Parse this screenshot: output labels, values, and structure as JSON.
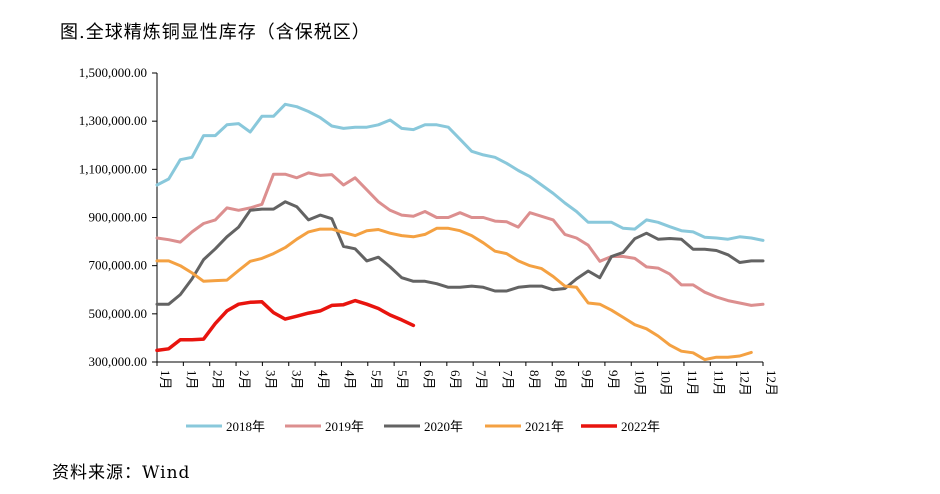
{
  "title": "图.全球精炼铜显性库存（含保税区）",
  "source": "资料来源：Wind",
  "chart_data": {
    "type": "line",
    "title": "图.全球精炼铜显性库存（含保税区）",
    "xlabel": "",
    "ylabel": "",
    "ylim": [
      300000,
      1500000
    ],
    "yticks": [
      300000,
      500000,
      700000,
      900000,
      1100000,
      1300000,
      1500000
    ],
    "ytick_labels": [
      "300,000.00",
      "500,000.00",
      "700,000.00",
      "900,000.00",
      "1,100,000.00",
      "1,300,000.00",
      "1,500,000.00"
    ],
    "x_points": 53,
    "x_tick_labels": [
      "1月",
      "1月",
      "2月",
      "2月",
      "3月",
      "3月",
      "4月",
      "4月",
      "5月",
      "5月",
      "6月",
      "6月",
      "7月",
      "7月",
      "8月",
      "8月",
      "9月",
      "9月",
      "10月",
      "10月",
      "11月",
      "11月",
      "12月",
      "12月"
    ],
    "grid": false,
    "legend": "bottom",
    "series": [
      {
        "name": "2018年",
        "color": "#89c8db",
        "width": 3,
        "values": [
          1035000,
          1060000,
          1140000,
          1150000,
          1240000,
          1240000,
          1285000,
          1290000,
          1255000,
          1320000,
          1320000,
          1370000,
          1360000,
          1340000,
          1315000,
          1280000,
          1270000,
          1275000,
          1275000,
          1285000,
          1305000,
          1270000,
          1265000,
          1285000,
          1285000,
          1275000,
          1225000,
          1175000,
          1160000,
          1150000,
          1125000,
          1095000,
          1070000,
          1035000,
          1000000,
          960000,
          925000,
          880000,
          880000,
          880000,
          855000,
          852000,
          890000,
          880000,
          862000,
          845000,
          840000,
          818000,
          815000,
          810000,
          820000,
          815000,
          805000
        ]
      },
      {
        "name": "2019年",
        "color": "#dc8f8f",
        "width": 3,
        "values": [
          815000,
          808000,
          798000,
          840000,
          875000,
          890000,
          940000,
          930000,
          940000,
          955000,
          1080000,
          1080000,
          1065000,
          1085000,
          1075000,
          1078000,
          1035000,
          1065000,
          1015000,
          965000,
          930000,
          910000,
          905000,
          925000,
          900000,
          900000,
          920000,
          900000,
          900000,
          885000,
          882000,
          860000,
          920000,
          905000,
          890000,
          830000,
          815000,
          785000,
          718000,
          738000,
          738000,
          730000,
          695000,
          690000,
          665000,
          620000,
          620000,
          590000,
          570000,
          555000,
          545000,
          535000,
          540000
        ]
      },
      {
        "name": "2020年",
        "color": "#636363",
        "width": 3,
        "values": [
          540000,
          540000,
          580000,
          645000,
          725000,
          770000,
          820000,
          860000,
          930000,
          935000,
          935000,
          965000,
          945000,
          890000,
          910000,
          895000,
          780000,
          770000,
          720000,
          735000,
          695000,
          650000,
          635000,
          635000,
          625000,
          610000,
          610000,
          615000,
          610000,
          595000,
          595000,
          610000,
          615000,
          615000,
          600000,
          605000,
          645000,
          678000,
          650000,
          738000,
          755000,
          812000,
          835000,
          810000,
          813000,
          810000,
          768000,
          768000,
          763000,
          745000,
          713000,
          720000,
          720000
        ]
      },
      {
        "name": "2021年",
        "color": "#f4a142",
        "width": 3,
        "values": [
          720000,
          720000,
          700000,
          670000,
          635000,
          638000,
          640000,
          680000,
          718000,
          730000,
          750000,
          775000,
          810000,
          840000,
          852000,
          852000,
          838000,
          825000,
          845000,
          850000,
          835000,
          825000,
          820000,
          830000,
          855000,
          855000,
          845000,
          825000,
          795000,
          760000,
          750000,
          720000,
          700000,
          688000,
          655000,
          615000,
          610000,
          545000,
          540000,
          515000,
          485000,
          455000,
          438000,
          408000,
          370000,
          345000,
          338000,
          310000,
          320000,
          320000,
          325000,
          340000
        ]
      },
      {
        "name": "2022年",
        "color": "#e8140e",
        "width": 3.5,
        "values": [
          348000,
          355000,
          392000,
          392000,
          395000,
          460000,
          512000,
          540000,
          548000,
          550000,
          505000,
          478000,
          490000,
          503000,
          512000,
          535000,
          538000,
          555000,
          540000,
          522000,
          495000,
          475000,
          452000
        ]
      }
    ]
  }
}
